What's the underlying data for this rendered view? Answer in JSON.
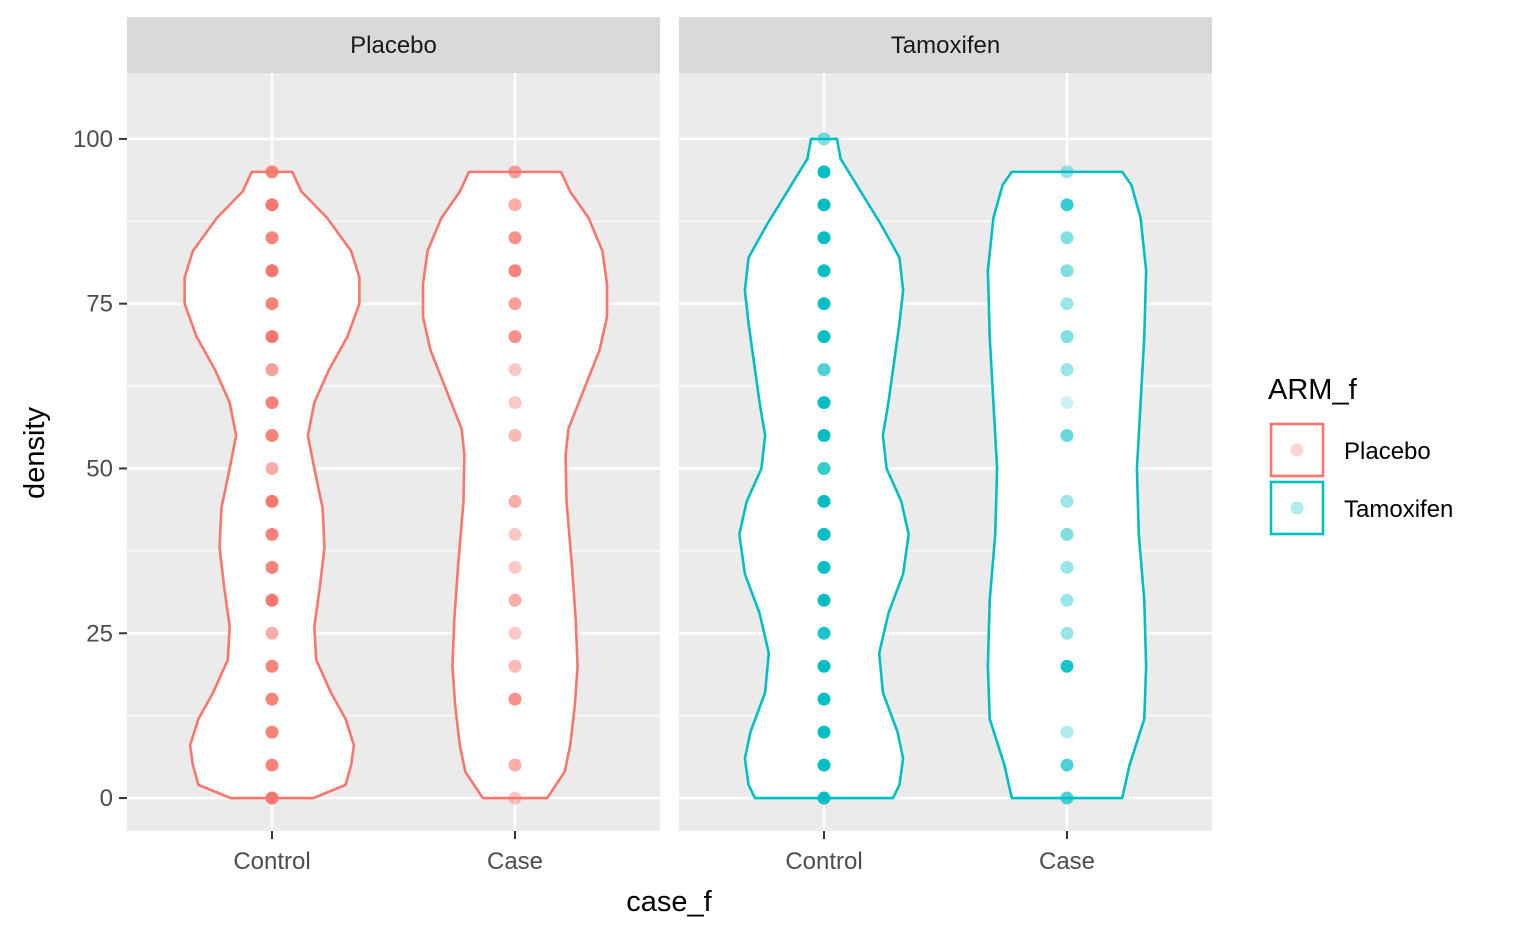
{
  "chart_data": {
    "type": "violin",
    "xlabel": "case_f",
    "ylabel": "density",
    "ylim": [
      -5,
      110
    ],
    "yticks": [
      0,
      25,
      50,
      75,
      100
    ],
    "categories": [
      "Control",
      "Case"
    ],
    "facets": [
      "Placebo",
      "Tamoxifen"
    ],
    "legend": {
      "title": "ARM_f",
      "placement": "right",
      "entries": [
        {
          "label": "Placebo",
          "color": "#F8766D"
        },
        {
          "label": "Tamoxifen",
          "color": "#00BFC4"
        }
      ]
    },
    "colors": {
      "Placebo": "#F8766D",
      "Tamoxifen": "#00BFC4",
      "panel_bg": "#EBEBEB",
      "strip_bg": "#D9D9D9",
      "grid": "#FFFFFF"
    },
    "groups": [
      {
        "facet": "Placebo",
        "category": "Control",
        "violin": [
          [
            0,
            0.45
          ],
          [
            2,
            0.8
          ],
          [
            5,
            0.86
          ],
          [
            8,
            0.89
          ],
          [
            12,
            0.8
          ],
          [
            16,
            0.64
          ],
          [
            21,
            0.48
          ],
          [
            26,
            0.46
          ],
          [
            32,
            0.52
          ],
          [
            38,
            0.57
          ],
          [
            44,
            0.55
          ],
          [
            50,
            0.46
          ],
          [
            55,
            0.39
          ],
          [
            60,
            0.46
          ],
          [
            65,
            0.62
          ],
          [
            70,
            0.82
          ],
          [
            75,
            0.95
          ],
          [
            79,
            0.95
          ],
          [
            83,
            0.86
          ],
          [
            88,
            0.6
          ],
          [
            92,
            0.32
          ],
          [
            95,
            0.22
          ]
        ],
        "points": [
          {
            "y": 0,
            "a": 1
          },
          {
            "y": 5,
            "a": 0.9
          },
          {
            "y": 10,
            "a": 0.9
          },
          {
            "y": 15,
            "a": 0.9
          },
          {
            "y": 20,
            "a": 0.9
          },
          {
            "y": 25,
            "a": 0.6
          },
          {
            "y": 30,
            "a": 1
          },
          {
            "y": 35,
            "a": 0.9
          },
          {
            "y": 40,
            "a": 0.9
          },
          {
            "y": 45,
            "a": 1
          },
          {
            "y": 50,
            "a": 0.6
          },
          {
            "y": 55,
            "a": 0.9
          },
          {
            "y": 60,
            "a": 0.9
          },
          {
            "y": 65,
            "a": 0.7
          },
          {
            "y": 70,
            "a": 1
          },
          {
            "y": 75,
            "a": 0.9
          },
          {
            "y": 80,
            "a": 1
          },
          {
            "y": 85,
            "a": 0.9
          },
          {
            "y": 90,
            "a": 1
          },
          {
            "y": 95,
            "a": 0.9
          }
        ]
      },
      {
        "facet": "Placebo",
        "category": "Case",
        "violin": [
          [
            0,
            0.35
          ],
          [
            4,
            0.54
          ],
          [
            8,
            0.6
          ],
          [
            14,
            0.65
          ],
          [
            20,
            0.68
          ],
          [
            27,
            0.66
          ],
          [
            35,
            0.62
          ],
          [
            45,
            0.56
          ],
          [
            52,
            0.55
          ],
          [
            56,
            0.58
          ],
          [
            62,
            0.75
          ],
          [
            68,
            0.92
          ],
          [
            73,
            1.0
          ],
          [
            78,
            1.0
          ],
          [
            83,
            0.95
          ],
          [
            88,
            0.8
          ],
          [
            92,
            0.6
          ],
          [
            95,
            0.5
          ]
        ],
        "points": [
          {
            "y": 0,
            "a": 0.4
          },
          {
            "y": 5,
            "a": 0.6
          },
          {
            "y": 15,
            "a": 0.8
          },
          {
            "y": 20,
            "a": 0.5
          },
          {
            "y": 25,
            "a": 0.4
          },
          {
            "y": 30,
            "a": 0.6
          },
          {
            "y": 35,
            "a": 0.4
          },
          {
            "y": 40,
            "a": 0.4
          },
          {
            "y": 45,
            "a": 0.6
          },
          {
            "y": 55,
            "a": 0.5
          },
          {
            "y": 60,
            "a": 0.4
          },
          {
            "y": 65,
            "a": 0.4
          },
          {
            "y": 70,
            "a": 0.8
          },
          {
            "y": 75,
            "a": 0.7
          },
          {
            "y": 80,
            "a": 0.9
          },
          {
            "y": 85,
            "a": 0.8
          },
          {
            "y": 90,
            "a": 0.6
          },
          {
            "y": 95,
            "a": 0.7
          }
        ]
      },
      {
        "facet": "Tamoxifen",
        "category": "Control",
        "violin": [
          [
            0,
            0.75
          ],
          [
            2,
            0.82
          ],
          [
            6,
            0.86
          ],
          [
            10,
            0.8
          ],
          [
            16,
            0.64
          ],
          [
            22,
            0.6
          ],
          [
            28,
            0.7
          ],
          [
            34,
            0.86
          ],
          [
            40,
            0.92
          ],
          [
            45,
            0.84
          ],
          [
            50,
            0.68
          ],
          [
            55,
            0.64
          ],
          [
            60,
            0.7
          ],
          [
            66,
            0.76
          ],
          [
            72,
            0.82
          ],
          [
            77,
            0.86
          ],
          [
            82,
            0.82
          ],
          [
            87,
            0.62
          ],
          [
            92,
            0.4
          ],
          [
            97,
            0.18
          ],
          [
            100,
            0.14
          ]
        ],
        "points": [
          {
            "y": 0,
            "a": 1
          },
          {
            "y": 5,
            "a": 1
          },
          {
            "y": 10,
            "a": 1
          },
          {
            "y": 15,
            "a": 1
          },
          {
            "y": 20,
            "a": 1
          },
          {
            "y": 25,
            "a": 0.9
          },
          {
            "y": 30,
            "a": 1
          },
          {
            "y": 35,
            "a": 1
          },
          {
            "y": 40,
            "a": 1
          },
          {
            "y": 45,
            "a": 1
          },
          {
            "y": 50,
            "a": 0.8
          },
          {
            "y": 55,
            "a": 1
          },
          {
            "y": 60,
            "a": 1
          },
          {
            "y": 65,
            "a": 0.7
          },
          {
            "y": 70,
            "a": 1
          },
          {
            "y": 75,
            "a": 1
          },
          {
            "y": 80,
            "a": 1
          },
          {
            "y": 85,
            "a": 1
          },
          {
            "y": 90,
            "a": 1
          },
          {
            "y": 95,
            "a": 1
          },
          {
            "y": 100,
            "a": 0.5
          }
        ]
      },
      {
        "facet": "Tamoxifen",
        "category": "Case",
        "violin": [
          [
            0,
            0.6
          ],
          [
            5,
            0.68
          ],
          [
            12,
            0.84
          ],
          [
            20,
            0.86
          ],
          [
            30,
            0.84
          ],
          [
            40,
            0.78
          ],
          [
            50,
            0.76
          ],
          [
            60,
            0.8
          ],
          [
            70,
            0.84
          ],
          [
            80,
            0.86
          ],
          [
            88,
            0.8
          ],
          [
            93,
            0.7
          ],
          [
            95,
            0.6
          ]
        ],
        "points": [
          {
            "y": 0,
            "a": 0.7
          },
          {
            "y": 5,
            "a": 0.7
          },
          {
            "y": 10,
            "a": 0.3
          },
          {
            "y": 20,
            "a": 0.9
          },
          {
            "y": 25,
            "a": 0.4
          },
          {
            "y": 30,
            "a": 0.4
          },
          {
            "y": 35,
            "a": 0.4
          },
          {
            "y": 40,
            "a": 0.5
          },
          {
            "y": 45,
            "a": 0.4
          },
          {
            "y": 55,
            "a": 0.6
          },
          {
            "y": 60,
            "a": 0.2
          },
          {
            "y": 65,
            "a": 0.4
          },
          {
            "y": 70,
            "a": 0.5
          },
          {
            "y": 75,
            "a": 0.4
          },
          {
            "y": 80,
            "a": 0.5
          },
          {
            "y": 85,
            "a": 0.5
          },
          {
            "y": 90,
            "a": 0.8
          },
          {
            "y": 95,
            "a": 0.4
          }
        ]
      }
    ]
  }
}
